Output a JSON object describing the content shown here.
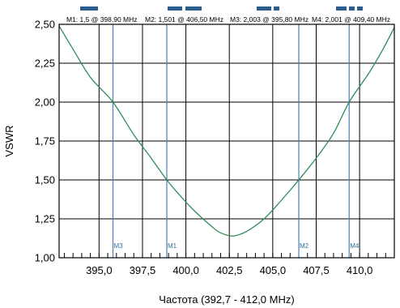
{
  "chart_data": {
    "type": "line",
    "title": "",
    "xlabel": "Частота (392,7 - 412,0 MHz)",
    "ylabel": "VSWR",
    "xlim": [
      392.7,
      412.0
    ],
    "ylim": [
      1.0,
      2.5
    ],
    "x_ticks": [
      395.0,
      397.5,
      400.0,
      402.5,
      405.0,
      407.5,
      410.0
    ],
    "x_tick_labels": [
      "395,0",
      "397,5",
      "400,0",
      "402,5",
      "405,0",
      "407,5",
      "410,0"
    ],
    "y_ticks": [
      1.0,
      1.25,
      1.5,
      1.75,
      2.0,
      2.25,
      2.5
    ],
    "y_tick_labels": [
      "1,00",
      "1,25",
      "1,50",
      "1,75",
      "2,00",
      "2,25",
      "2,50"
    ],
    "grid": true,
    "series": [
      {
        "name": "",
        "color": "#2e8b57",
        "x": [
          392.7,
          393.5,
          394.5,
          395.8,
          397.0,
          398.0,
          398.9,
          399.5,
          400.5,
          401.5,
          402.0,
          402.7,
          403.5,
          404.5,
          405.5,
          406.5,
          407.5,
          408.5,
          409.4,
          410.5,
          411.3,
          412.0
        ],
        "y": [
          2.49,
          2.34,
          2.16,
          2.0,
          1.79,
          1.64,
          1.5,
          1.42,
          1.3,
          1.2,
          1.16,
          1.14,
          1.17,
          1.25,
          1.37,
          1.5,
          1.64,
          1.8,
          2.0,
          2.18,
          2.33,
          2.48
        ]
      }
    ],
    "markers": [
      {
        "label": "M1",
        "x": 398.9,
        "header": "M1: 1,5  @ 398,90 MHz"
      },
      {
        "label": "M2",
        "x": 406.5,
        "header": "M2: 1,501  @ 406,50 MHz"
      },
      {
        "label": "M3",
        "x": 395.8,
        "header": "M3: 2,003  @ 395,80 MHz"
      },
      {
        "label": "M4",
        "x": 409.4,
        "header": "M4: 2,001  @ 409,40 MHz"
      }
    ],
    "colors": {
      "marker_line": "#4f7fb0",
      "legend_bar": "#2b5c8e",
      "grid": "#000000",
      "curve": "#2e8b57"
    }
  }
}
